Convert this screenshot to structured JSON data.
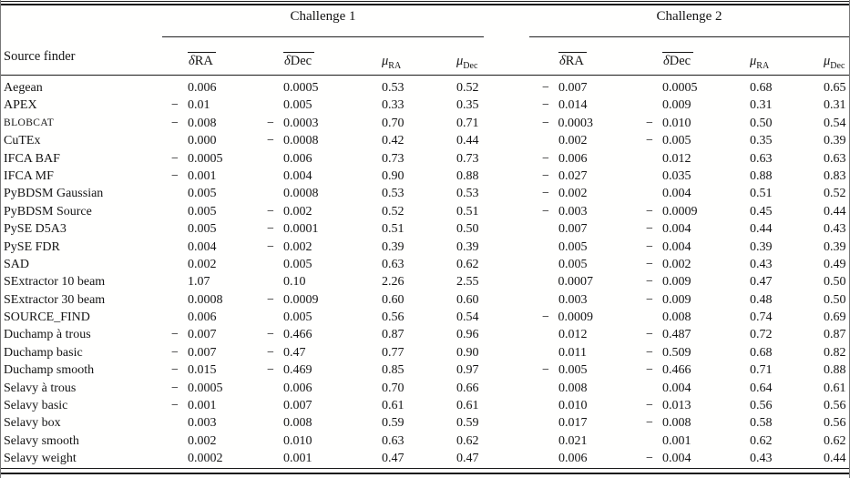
{
  "table": {
    "row_header": "Source finder",
    "groups": [
      {
        "label": "Challenge 1"
      },
      {
        "label": "Challenge 2"
      }
    ],
    "columns": [
      {
        "id": "challenge1-delta-ra",
        "type": "overline",
        "symbol": "δ",
        "rest": "RA"
      },
      {
        "id": "challenge1-delta-dec",
        "type": "overline",
        "symbol": "δ",
        "rest": "Dec"
      },
      {
        "id": "challenge1-mu-ra",
        "type": "mu",
        "symbol": "μ",
        "sub": "RA"
      },
      {
        "id": "challenge1-mu-dec",
        "type": "mu",
        "symbol": "μ",
        "sub": "Dec"
      },
      {
        "id": "challenge2-delta-ra",
        "type": "overline",
        "symbol": "δ",
        "rest": "RA"
      },
      {
        "id": "challenge2-delta-dec",
        "type": "overline",
        "symbol": "δ",
        "rest": "Dec"
      },
      {
        "id": "challenge2-mu-ra",
        "type": "mu",
        "symbol": "μ",
        "sub": "RA"
      },
      {
        "id": "challenge2-mu-dec",
        "type": "mu",
        "symbol": "μ",
        "sub": "Dec"
      }
    ],
    "rows": [
      {
        "name": "Aegean",
        "smallcaps": false,
        "values": [
          "0.006",
          "0.0005",
          "0.53",
          "0.52",
          "−0.007",
          "0.0005",
          "0.68",
          "0.65"
        ]
      },
      {
        "name": "APEX",
        "smallcaps": false,
        "values": [
          "−0.01",
          "0.005",
          "0.33",
          "0.35",
          "−0.014",
          "0.009",
          "0.31",
          "0.31"
        ]
      },
      {
        "name": "BLOBCAT",
        "smallcaps": true,
        "values": [
          "−0.008",
          "−0.0003",
          "0.70",
          "0.71",
          "−0.0003",
          "−0.010",
          "0.50",
          "0.54"
        ]
      },
      {
        "name": "CuTEx",
        "smallcaps": false,
        "values": [
          "0.000",
          "−0.0008",
          "0.42",
          "0.44",
          "0.002",
          "−0.005",
          "0.35",
          "0.39"
        ]
      },
      {
        "name": "IFCA BAF",
        "smallcaps": false,
        "values": [
          "−0.0005",
          "0.006",
          "0.73",
          "0.73",
          "−0.006",
          "0.012",
          "0.63",
          "0.63"
        ]
      },
      {
        "name": "IFCA MF",
        "smallcaps": false,
        "values": [
          "−0.001",
          "0.004",
          "0.90",
          "0.88",
          "−0.027",
          "0.035",
          "0.88",
          "0.83"
        ]
      },
      {
        "name": "PyBDSM Gaussian",
        "smallcaps": false,
        "values": [
          "0.005",
          "0.0008",
          "0.53",
          "0.53",
          "−0.002",
          "0.004",
          "0.51",
          "0.52"
        ]
      },
      {
        "name": "PyBDSM Source",
        "smallcaps": false,
        "values": [
          "0.005",
          "−0.002",
          "0.52",
          "0.51",
          "−0.003",
          "−0.0009",
          "0.45",
          "0.44"
        ]
      },
      {
        "name": "PySE D5A3",
        "smallcaps": false,
        "values": [
          "0.005",
          "−0.0001",
          "0.51",
          "0.50",
          "0.007",
          "−0.004",
          "0.44",
          "0.43"
        ]
      },
      {
        "name": "PySE FDR",
        "smallcaps": false,
        "values": [
          "0.004",
          "−0.002",
          "0.39",
          "0.39",
          "0.005",
          "−0.004",
          "0.39",
          "0.39"
        ]
      },
      {
        "name": "SAD",
        "smallcaps": false,
        "values": [
          "0.002",
          "0.005",
          "0.63",
          "0.62",
          "0.005",
          "−0.002",
          "0.43",
          "0.49"
        ]
      },
      {
        "name": "SExtractor 10 beam",
        "smallcaps": false,
        "values": [
          "1.07",
          "0.10",
          "2.26",
          "2.55",
          "0.0007",
          "−0.009",
          "0.47",
          "0.50"
        ]
      },
      {
        "name": "SExtractor 30 beam",
        "smallcaps": false,
        "values": [
          "0.0008",
          "−0.0009",
          "0.60",
          "0.60",
          "0.003",
          "−0.009",
          "0.48",
          "0.50"
        ]
      },
      {
        "name": "SOURCE_FIND",
        "smallcaps": false,
        "values": [
          "0.006",
          "0.005",
          "0.56",
          "0.54",
          "−0.0009",
          "0.008",
          "0.74",
          "0.69"
        ]
      },
      {
        "name": "Duchamp à trous",
        "smallcaps": false,
        "values": [
          "−0.007",
          "−0.466",
          "0.87",
          "0.96",
          "0.012",
          "−0.487",
          "0.72",
          "0.87"
        ]
      },
      {
        "name": "Duchamp basic",
        "smallcaps": false,
        "values": [
          "−0.007",
          "−0.47",
          "0.77",
          "0.90",
          "0.011",
          "−0.509",
          "0.68",
          "0.82"
        ]
      },
      {
        "name": "Duchamp smooth",
        "smallcaps": false,
        "values": [
          "−0.015",
          "−0.469",
          "0.85",
          "0.97",
          "−0.005",
          "−0.466",
          "0.71",
          "0.88"
        ]
      },
      {
        "name": "Selavy à trous",
        "smallcaps": false,
        "values": [
          "−0.0005",
          "0.006",
          "0.70",
          "0.66",
          "0.008",
          "0.004",
          "0.64",
          "0.61"
        ]
      },
      {
        "name": "Selavy basic",
        "smallcaps": false,
        "values": [
          "−0.001",
          "0.007",
          "0.61",
          "0.61",
          "0.010",
          "−0.013",
          "0.56",
          "0.56"
        ]
      },
      {
        "name": "Selavy box",
        "smallcaps": false,
        "values": [
          "0.003",
          "0.008",
          "0.59",
          "0.59",
          "0.017",
          "−0.008",
          "0.58",
          "0.56"
        ]
      },
      {
        "name": "Selavy smooth",
        "smallcaps": false,
        "values": [
          "0.002",
          "0.010",
          "0.63",
          "0.62",
          "0.021",
          "0.001",
          "0.62",
          "0.62"
        ]
      },
      {
        "name": "Selavy weight",
        "smallcaps": false,
        "values": [
          "0.0002",
          "0.001",
          "0.47",
          "0.47",
          "0.006",
          "−0.004",
          "0.43",
          "0.44"
        ]
      }
    ]
  },
  "colors": {
    "text": "#141414",
    "rule": "#1a1a1a",
    "background": "#fffffe"
  }
}
